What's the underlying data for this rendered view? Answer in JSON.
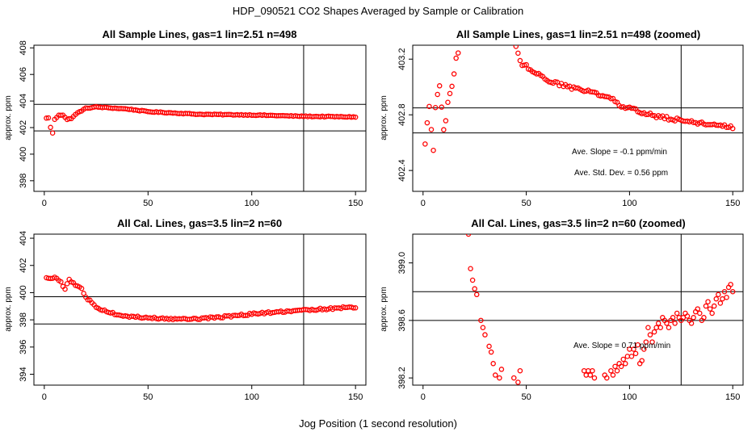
{
  "figure": {
    "title": "HDP_090521  CO2 Shapes Averaged by Sample or Calibration",
    "xlabel": "Jog Position (1 second resolution)"
  },
  "chart_data": [
    {
      "type": "scatter",
      "title": "All Sample Lines, gas=1 lin=2.51 n=498",
      "ylabel": "approx. ppm",
      "xlim": [
        -5,
        155
      ],
      "ylim": [
        397.2,
        408.2
      ],
      "xticks": [
        "0",
        "50",
        "100",
        "150"
      ],
      "yticks": [
        "398",
        "400",
        "402",
        "404",
        "406",
        "408"
      ],
      "hlines": [
        401.75,
        403.75
      ],
      "vlines": [
        125
      ],
      "annotations": [],
      "series": [
        {
          "marker": "open-circle",
          "color": "#ff0000",
          "anchors": [
            [
              1,
              402.7
            ],
            [
              2,
              402.75
            ],
            [
              3,
              402.0
            ],
            [
              4,
              401.6
            ],
            [
              5,
              402.6
            ],
            [
              7,
              402.95
            ],
            [
              9,
              402.95
            ],
            [
              11,
              402.6
            ],
            [
              13,
              402.7
            ],
            [
              16,
              403.1
            ],
            [
              20,
              403.45
            ],
            [
              25,
              403.55
            ],
            [
              30,
              403.5
            ],
            [
              40,
              403.4
            ],
            [
              50,
              403.2
            ],
            [
              75,
              403.0
            ],
            [
              100,
              402.95
            ],
            [
              125,
              402.85
            ],
            [
              150,
              402.8
            ]
          ],
          "noise": 0.03
        }
      ]
    },
    {
      "type": "scatter",
      "title": "All Sample Lines, gas=1 lin=2.51 n=498 (zoomed)",
      "ylabel": "approx. ppm",
      "xlim": [
        -5,
        155
      ],
      "ylim": [
        402.25,
        403.3
      ],
      "xticks": [
        "0",
        "50",
        "100",
        "150"
      ],
      "yticks": [
        "402.4",
        "402.8",
        "403.2"
      ],
      "hlines": [
        402.85,
        402.67
      ],
      "vlines": [
        125
      ],
      "annotations": [
        "Ave. Slope =  -0.1  ppm/min",
        "Ave. Std. Dev. =  0.56  ppm"
      ],
      "series": [
        {
          "marker": "open-circle",
          "color": "#ff0000",
          "anchors": [
            [
              1,
              402.6
            ],
            [
              2,
              402.75
            ],
            [
              3,
              402.85
            ],
            [
              5,
              402.55
            ],
            [
              6,
              402.85
            ],
            [
              7,
              402.95
            ],
            [
              8,
              403.0
            ],
            [
              10,
              402.7
            ],
            [
              11,
              402.75
            ],
            [
              12,
              402.9
            ],
            [
              13,
              402.95
            ],
            [
              14,
              403.0
            ],
            [
              15,
              403.1
            ],
            [
              16,
              403.2
            ],
            [
              17,
              403.25
            ],
            [
              18,
              403.35
            ],
            [
              44,
              403.35
            ],
            [
              46,
              403.25
            ],
            [
              48,
              403.15
            ],
            [
              50,
              403.15
            ],
            [
              55,
              403.1
            ],
            [
              60,
              403.05
            ],
            [
              70,
              403.0
            ],
            [
              80,
              402.97
            ],
            [
              90,
              402.93
            ],
            [
              95,
              402.87
            ],
            [
              100,
              402.85
            ],
            [
              110,
              402.8
            ],
            [
              120,
              402.77
            ],
            [
              130,
              402.75
            ],
            [
              140,
              402.73
            ],
            [
              150,
              402.71
            ]
          ],
          "noise": 0.012
        }
      ]
    },
    {
      "type": "scatter",
      "title": "All Cal. Lines, gas=3.5 lin=2 n=60",
      "ylabel": "approx. ppm",
      "xlim": [
        -5,
        155
      ],
      "ylim": [
        393.2,
        404.3
      ],
      "xticks": [
        "0",
        "50",
        "100",
        "150"
      ],
      "yticks": [
        "394",
        "396",
        "398",
        "400",
        "402",
        "404"
      ],
      "hlines": [
        399.7,
        397.7
      ],
      "vlines": [
        125
      ],
      "annotations": [],
      "series": [
        {
          "marker": "open-circle",
          "color": "#ff0000",
          "anchors": [
            [
              1,
              401.1
            ],
            [
              5,
              401.1
            ],
            [
              8,
              400.8
            ],
            [
              10,
              400.2
            ],
            [
              12,
              401.0
            ],
            [
              15,
              400.5
            ],
            [
              18,
              400.3
            ],
            [
              20,
              399.7
            ],
            [
              25,
              398.9
            ],
            [
              30,
              398.6
            ],
            [
              35,
              398.4
            ],
            [
              40,
              398.25
            ],
            [
              45,
              398.2
            ],
            [
              55,
              398.1
            ],
            [
              65,
              398.05
            ],
            [
              75,
              398.1
            ],
            [
              85,
              398.2
            ],
            [
              95,
              398.35
            ],
            [
              105,
              398.5
            ],
            [
              115,
              398.6
            ],
            [
              125,
              398.7
            ],
            [
              135,
              398.8
            ],
            [
              145,
              398.9
            ],
            [
              150,
              398.95
            ]
          ],
          "noise": 0.07
        }
      ]
    },
    {
      "type": "scatter",
      "title": "All Cal. Lines, gas=3.5 lin=2 n=60 (zoomed)",
      "ylabel": "approx. ppm",
      "xlim": [
        -5,
        155
      ],
      "ylim": [
        398.15,
        399.2
      ],
      "xticks": [
        "0",
        "50",
        "100",
        "150"
      ],
      "yticks": [
        "398.2",
        "398.6",
        "399.0"
      ],
      "hlines": [
        398.8,
        398.6
      ],
      "vlines": [
        125
      ],
      "annotations": [
        "Ave. Slope =  0.71  ppm/min"
      ],
      "series": [
        {
          "marker": "open-circle",
          "color": "#ff0000",
          "points": [
            [
              22,
              399.2
            ],
            [
              23,
              398.96
            ],
            [
              24,
              398.88
            ],
            [
              25,
              398.82
            ],
            [
              26,
              398.78
            ],
            [
              28,
              398.6
            ],
            [
              29,
              398.55
            ],
            [
              30,
              398.5
            ],
            [
              32,
              398.42
            ],
            [
              33,
              398.38
            ],
            [
              34,
              398.3
            ],
            [
              35,
              398.22
            ],
            [
              37,
              398.2
            ],
            [
              38,
              398.26
            ],
            [
              44,
              398.2
            ],
            [
              46,
              398.17
            ],
            [
              47,
              398.25
            ],
            [
              78,
              398.25
            ],
            [
              79,
              398.22
            ],
            [
              80,
              398.25
            ],
            [
              81,
              398.22
            ],
            [
              82,
              398.25
            ],
            [
              83,
              398.2
            ],
            [
              88,
              398.22
            ],
            [
              89,
              398.2
            ],
            [
              91,
              398.25
            ],
            [
              92,
              398.22
            ],
            [
              93,
              398.28
            ],
            [
              94,
              398.25
            ],
            [
              95,
              398.3
            ],
            [
              96,
              398.28
            ],
            [
              97,
              398.33
            ],
            [
              98,
              398.3
            ],
            [
              99,
              398.35
            ],
            [
              100,
              398.4
            ],
            [
              101,
              398.35
            ],
            [
              102,
              398.4
            ],
            [
              103,
              398.37
            ],
            [
              104,
              398.43
            ],
            [
              105,
              398.3
            ],
            [
              106,
              398.32
            ],
            [
              107,
              398.4
            ],
            [
              108,
              398.45
            ],
            [
              109,
              398.55
            ],
            [
              110,
              398.5
            ],
            [
              111,
              398.45
            ],
            [
              112,
              398.52
            ],
            [
              113,
              398.55
            ],
            [
              114,
              398.58
            ],
            [
              115,
              398.55
            ],
            [
              116,
              398.62
            ],
            [
              117,
              398.6
            ],
            [
              118,
              398.58
            ],
            [
              119,
              398.55
            ],
            [
              120,
              398.6
            ],
            [
              121,
              398.62
            ],
            [
              122,
              398.58
            ],
            [
              123,
              398.65
            ],
            [
              124,
              398.62
            ],
            [
              125,
              398.6
            ],
            [
              126,
              398.62
            ],
            [
              127,
              398.65
            ],
            [
              128,
              398.63
            ],
            [
              129,
              398.6
            ],
            [
              130,
              398.58
            ],
            [
              131,
              398.62
            ],
            [
              132,
              398.66
            ],
            [
              133,
              398.68
            ],
            [
              134,
              398.65
            ],
            [
              135,
              398.6
            ],
            [
              136,
              398.62
            ],
            [
              137,
              398.7
            ],
            [
              138,
              398.73
            ],
            [
              139,
              398.68
            ],
            [
              140,
              398.65
            ],
            [
              141,
              398.7
            ],
            [
              142,
              398.75
            ],
            [
              143,
              398.78
            ],
            [
              144,
              398.72
            ],
            [
              145,
              398.75
            ],
            [
              146,
              398.8
            ],
            [
              147,
              398.76
            ],
            [
              148,
              398.83
            ],
            [
              149,
              398.85
            ],
            [
              150,
              398.8
            ]
          ]
        }
      ]
    }
  ]
}
